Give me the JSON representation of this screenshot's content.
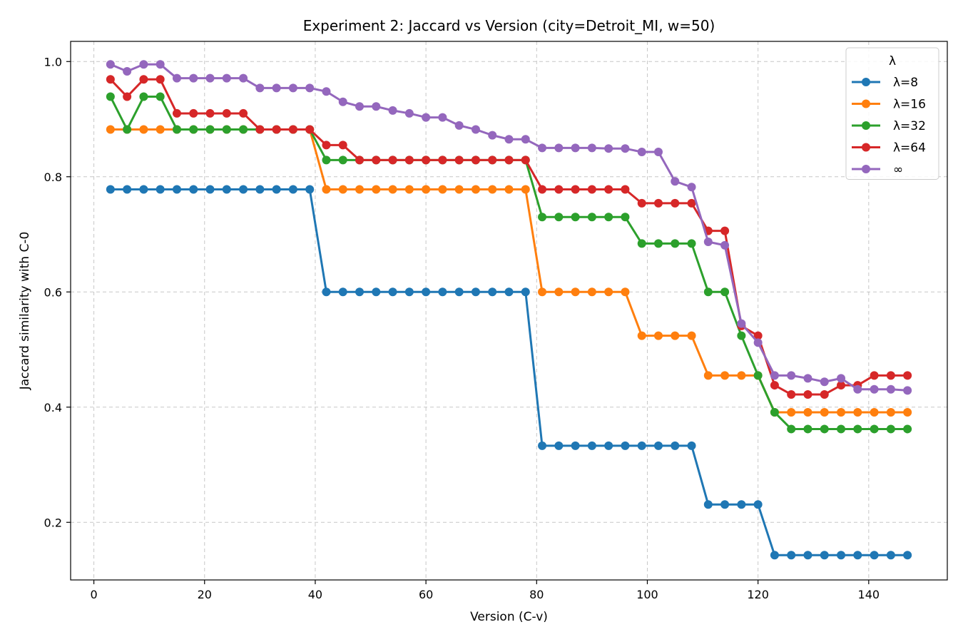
{
  "chart_data": {
    "type": "line",
    "title": "Experiment 2: Jaccard vs Version  (city=Detroit_MI, w=50)",
    "xlabel": "Version (C-v)",
    "ylabel": "Jaccard similarity with C-0",
    "xlim": [
      -4.2,
      154.2
    ],
    "ylim": [
      0.1,
      1.035
    ],
    "xticks": [
      0,
      20,
      40,
      60,
      80,
      100,
      120,
      140
    ],
    "yticks": [
      0.2,
      0.4,
      0.6,
      0.8,
      1.0
    ],
    "xtick_labels": [
      "0",
      "20",
      "40",
      "60",
      "80",
      "100",
      "120",
      "140"
    ],
    "ytick_labels": [
      "0.2",
      "0.4",
      "0.6",
      "0.8",
      "1.0"
    ],
    "grid": true,
    "legend": {
      "title": "λ",
      "position": "top-right"
    },
    "x": [
      3,
      6,
      9,
      12,
      15,
      18,
      21,
      24,
      27,
      30,
      33,
      36,
      39,
      42,
      45,
      48,
      51,
      54,
      57,
      60,
      63,
      66,
      69,
      72,
      75,
      78,
      81,
      84,
      87,
      90,
      93,
      96,
      99,
      102,
      105,
      108,
      111,
      114,
      117,
      120,
      123,
      126,
      129,
      132,
      135,
      138,
      141,
      144,
      147
    ],
    "series": [
      {
        "name": "λ=8",
        "color": "#1f77b4",
        "values": [
          0.778,
          0.778,
          0.778,
          0.778,
          0.778,
          0.778,
          0.778,
          0.778,
          0.778,
          0.778,
          0.778,
          0.778,
          0.778,
          0.6,
          0.6,
          0.6,
          0.6,
          0.6,
          0.6,
          0.6,
          0.6,
          0.6,
          0.6,
          0.6,
          0.6,
          0.6,
          0.333,
          0.333,
          0.333,
          0.333,
          0.333,
          0.333,
          0.333,
          0.333,
          0.333,
          0.333,
          0.231,
          0.231,
          0.231,
          0.231,
          0.143,
          0.143,
          0.143,
          0.143,
          0.143,
          0.143,
          0.143,
          0.143,
          0.143
        ]
      },
      {
        "name": "λ=16",
        "color": "#ff7f0e",
        "values": [
          0.882,
          0.882,
          0.882,
          0.882,
          0.882,
          0.882,
          0.882,
          0.882,
          0.882,
          0.882,
          0.882,
          0.882,
          0.882,
          0.778,
          0.778,
          0.778,
          0.778,
          0.778,
          0.778,
          0.778,
          0.778,
          0.778,
          0.778,
          0.778,
          0.778,
          0.778,
          0.6,
          0.6,
          0.6,
          0.6,
          0.6,
          0.6,
          0.524,
          0.524,
          0.524,
          0.524,
          0.455,
          0.455,
          0.455,
          0.455,
          0.391,
          0.391,
          0.391,
          0.391,
          0.391,
          0.391,
          0.391,
          0.391,
          0.391
        ]
      },
      {
        "name": "λ=32",
        "color": "#2ca02c",
        "values": [
          0.939,
          0.882,
          0.939,
          0.939,
          0.882,
          0.882,
          0.882,
          0.882,
          0.882,
          0.882,
          0.882,
          0.882,
          0.882,
          0.829,
          0.829,
          0.829,
          0.829,
          0.829,
          0.829,
          0.829,
          0.829,
          0.829,
          0.829,
          0.829,
          0.829,
          0.829,
          0.73,
          0.73,
          0.73,
          0.73,
          0.73,
          0.73,
          0.684,
          0.684,
          0.684,
          0.684,
          0.6,
          0.6,
          0.524,
          0.455,
          0.391,
          0.362,
          0.362,
          0.362,
          0.362,
          0.362,
          0.362,
          0.362,
          0.362
        ]
      },
      {
        "name": "λ=64",
        "color": "#d62728",
        "values": [
          0.969,
          0.939,
          0.969,
          0.969,
          0.91,
          0.91,
          0.91,
          0.91,
          0.91,
          0.882,
          0.882,
          0.882,
          0.882,
          0.855,
          0.855,
          0.829,
          0.829,
          0.829,
          0.829,
          0.829,
          0.829,
          0.829,
          0.829,
          0.829,
          0.829,
          0.829,
          0.778,
          0.778,
          0.778,
          0.778,
          0.778,
          0.778,
          0.754,
          0.754,
          0.754,
          0.754,
          0.706,
          0.706,
          0.541,
          0.524,
          0.438,
          0.422,
          0.422,
          0.422,
          0.438,
          0.438,
          0.455,
          0.455,
          0.455
        ]
      },
      {
        "name": "∞",
        "color": "#9467bd",
        "values": [
          0.995,
          0.983,
          0.995,
          0.995,
          0.971,
          0.971,
          0.971,
          0.971,
          0.971,
          0.954,
          0.954,
          0.954,
          0.954,
          0.948,
          0.93,
          0.922,
          0.922,
          0.915,
          0.91,
          0.903,
          0.903,
          0.889,
          0.882,
          0.872,
          0.865,
          0.865,
          0.85,
          0.85,
          0.85,
          0.85,
          0.849,
          0.849,
          0.843,
          0.843,
          0.792,
          0.782,
          0.687,
          0.681,
          0.545,
          0.512,
          0.455,
          0.455,
          0.45,
          0.444,
          0.45,
          0.431,
          0.431,
          0.431,
          0.429
        ]
      }
    ]
  }
}
